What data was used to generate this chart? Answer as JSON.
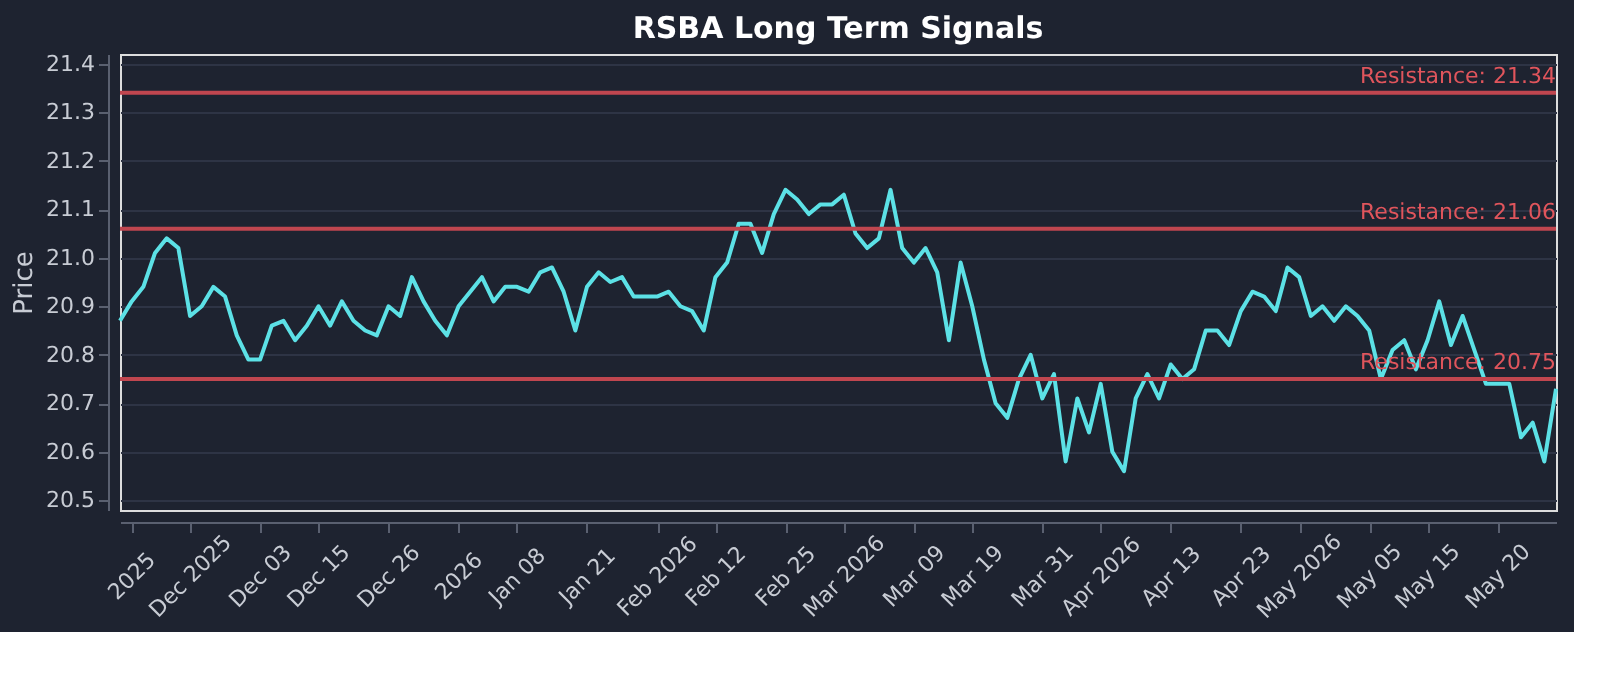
{
  "chart_data": {
    "type": "line",
    "title": "RSBA Long Term Signals",
    "ylabel": "Price",
    "categories": [
      null,
      "2025",
      null,
      null,
      null,
      null,
      "Dec 2025",
      null,
      null,
      null,
      null,
      null,
      "Dec 03",
      null,
      null,
      null,
      null,
      "Dec 15",
      null,
      null,
      null,
      null,
      null,
      "Dec 26",
      null,
      null,
      null,
      null,
      null,
      "2026",
      null,
      null,
      null,
      null,
      "Jan 08",
      null,
      null,
      null,
      null,
      null,
      "Jan 21",
      null,
      null,
      null,
      null,
      null,
      "Feb 2026",
      null,
      null,
      null,
      null,
      "Feb 12",
      null,
      null,
      null,
      null,
      null,
      "Feb 25",
      null,
      null,
      null,
      null,
      "Mar 2026",
      null,
      null,
      null,
      null,
      null,
      "Mar 09",
      null,
      null,
      null,
      null,
      "Mar 19",
      null,
      null,
      null,
      null,
      null,
      "Mar 31",
      null,
      null,
      null,
      null,
      "Apr 2026",
      null,
      null,
      null,
      null,
      null,
      "Apr 13",
      null,
      null,
      null,
      null,
      null,
      "Apr 23",
      null,
      null,
      null,
      null,
      "May 2026",
      null,
      null,
      null,
      null,
      null,
      "May 05",
      null,
      null,
      null,
      null,
      "May 15",
      null,
      null,
      null,
      null,
      null,
      "May 20",
      null,
      null,
      null,
      null,
      null
    ],
    "series": [
      {
        "color": "#5ce1e6",
        "values": [
          20.87,
          20.91,
          20.94,
          21.01,
          21.04,
          21.02,
          20.88,
          20.9,
          20.94,
          20.92,
          20.84,
          20.79,
          20.79,
          20.86,
          20.87,
          20.83,
          20.86,
          20.9,
          20.86,
          20.91,
          20.87,
          20.85,
          20.84,
          20.9,
          20.88,
          20.96,
          20.91,
          20.87,
          20.84,
          20.9,
          20.93,
          20.96,
          20.91,
          20.94,
          20.94,
          20.93,
          20.97,
          20.98,
          20.93,
          20.85,
          20.94,
          20.97,
          20.95,
          20.96,
          20.92,
          20.92,
          20.92,
          20.93,
          20.9,
          20.89,
          20.85,
          20.96,
          20.99,
          21.07,
          21.07,
          21.01,
          21.09,
          21.14,
          21.12,
          21.09,
          21.11,
          21.11,
          21.13,
          21.05,
          21.02,
          21.04,
          21.14,
          21.02,
          20.99,
          21.02,
          20.97,
          20.83,
          20.99,
          20.9,
          20.79,
          20.7,
          20.67,
          20.75,
          20.8,
          20.71,
          20.76,
          20.58,
          20.71,
          20.64,
          20.74,
          20.6,
          20.56,
          20.71,
          20.76,
          20.71,
          20.78,
          20.75,
          20.77,
          20.85,
          20.85,
          20.82,
          20.89,
          20.93,
          20.92,
          20.89,
          20.98,
          20.96,
          20.88,
          20.9,
          20.87,
          20.9,
          20.88,
          20.85,
          20.75,
          20.81,
          20.83,
          20.77,
          20.83,
          20.91,
          20.82,
          20.88,
          20.81,
          20.74,
          20.74,
          20.74,
          20.63,
          20.66,
          20.58,
          20.73
        ]
      }
    ],
    "ylim": [
      20.48,
      21.42
    ],
    "yticks": [
      20.5,
      20.6,
      20.7,
      20.8,
      20.9,
      {
        "value": 21,
        "label": "21.0"
      },
      21.1,
      21.2,
      21.3,
      21.4
    ],
    "ref_lines": [
      {
        "axis": "y",
        "value": 21.34,
        "label": "Resistance: 21.34",
        "color": "#c0464f"
      },
      {
        "axis": "y",
        "value": 21.06,
        "label": "Resistance: 21.06",
        "color": "#c0464f"
      },
      {
        "axis": "y",
        "value": 20.75,
        "label": "Resistance: 20.75",
        "color": "#c0464f"
      }
    ],
    "grid": "y"
  }
}
